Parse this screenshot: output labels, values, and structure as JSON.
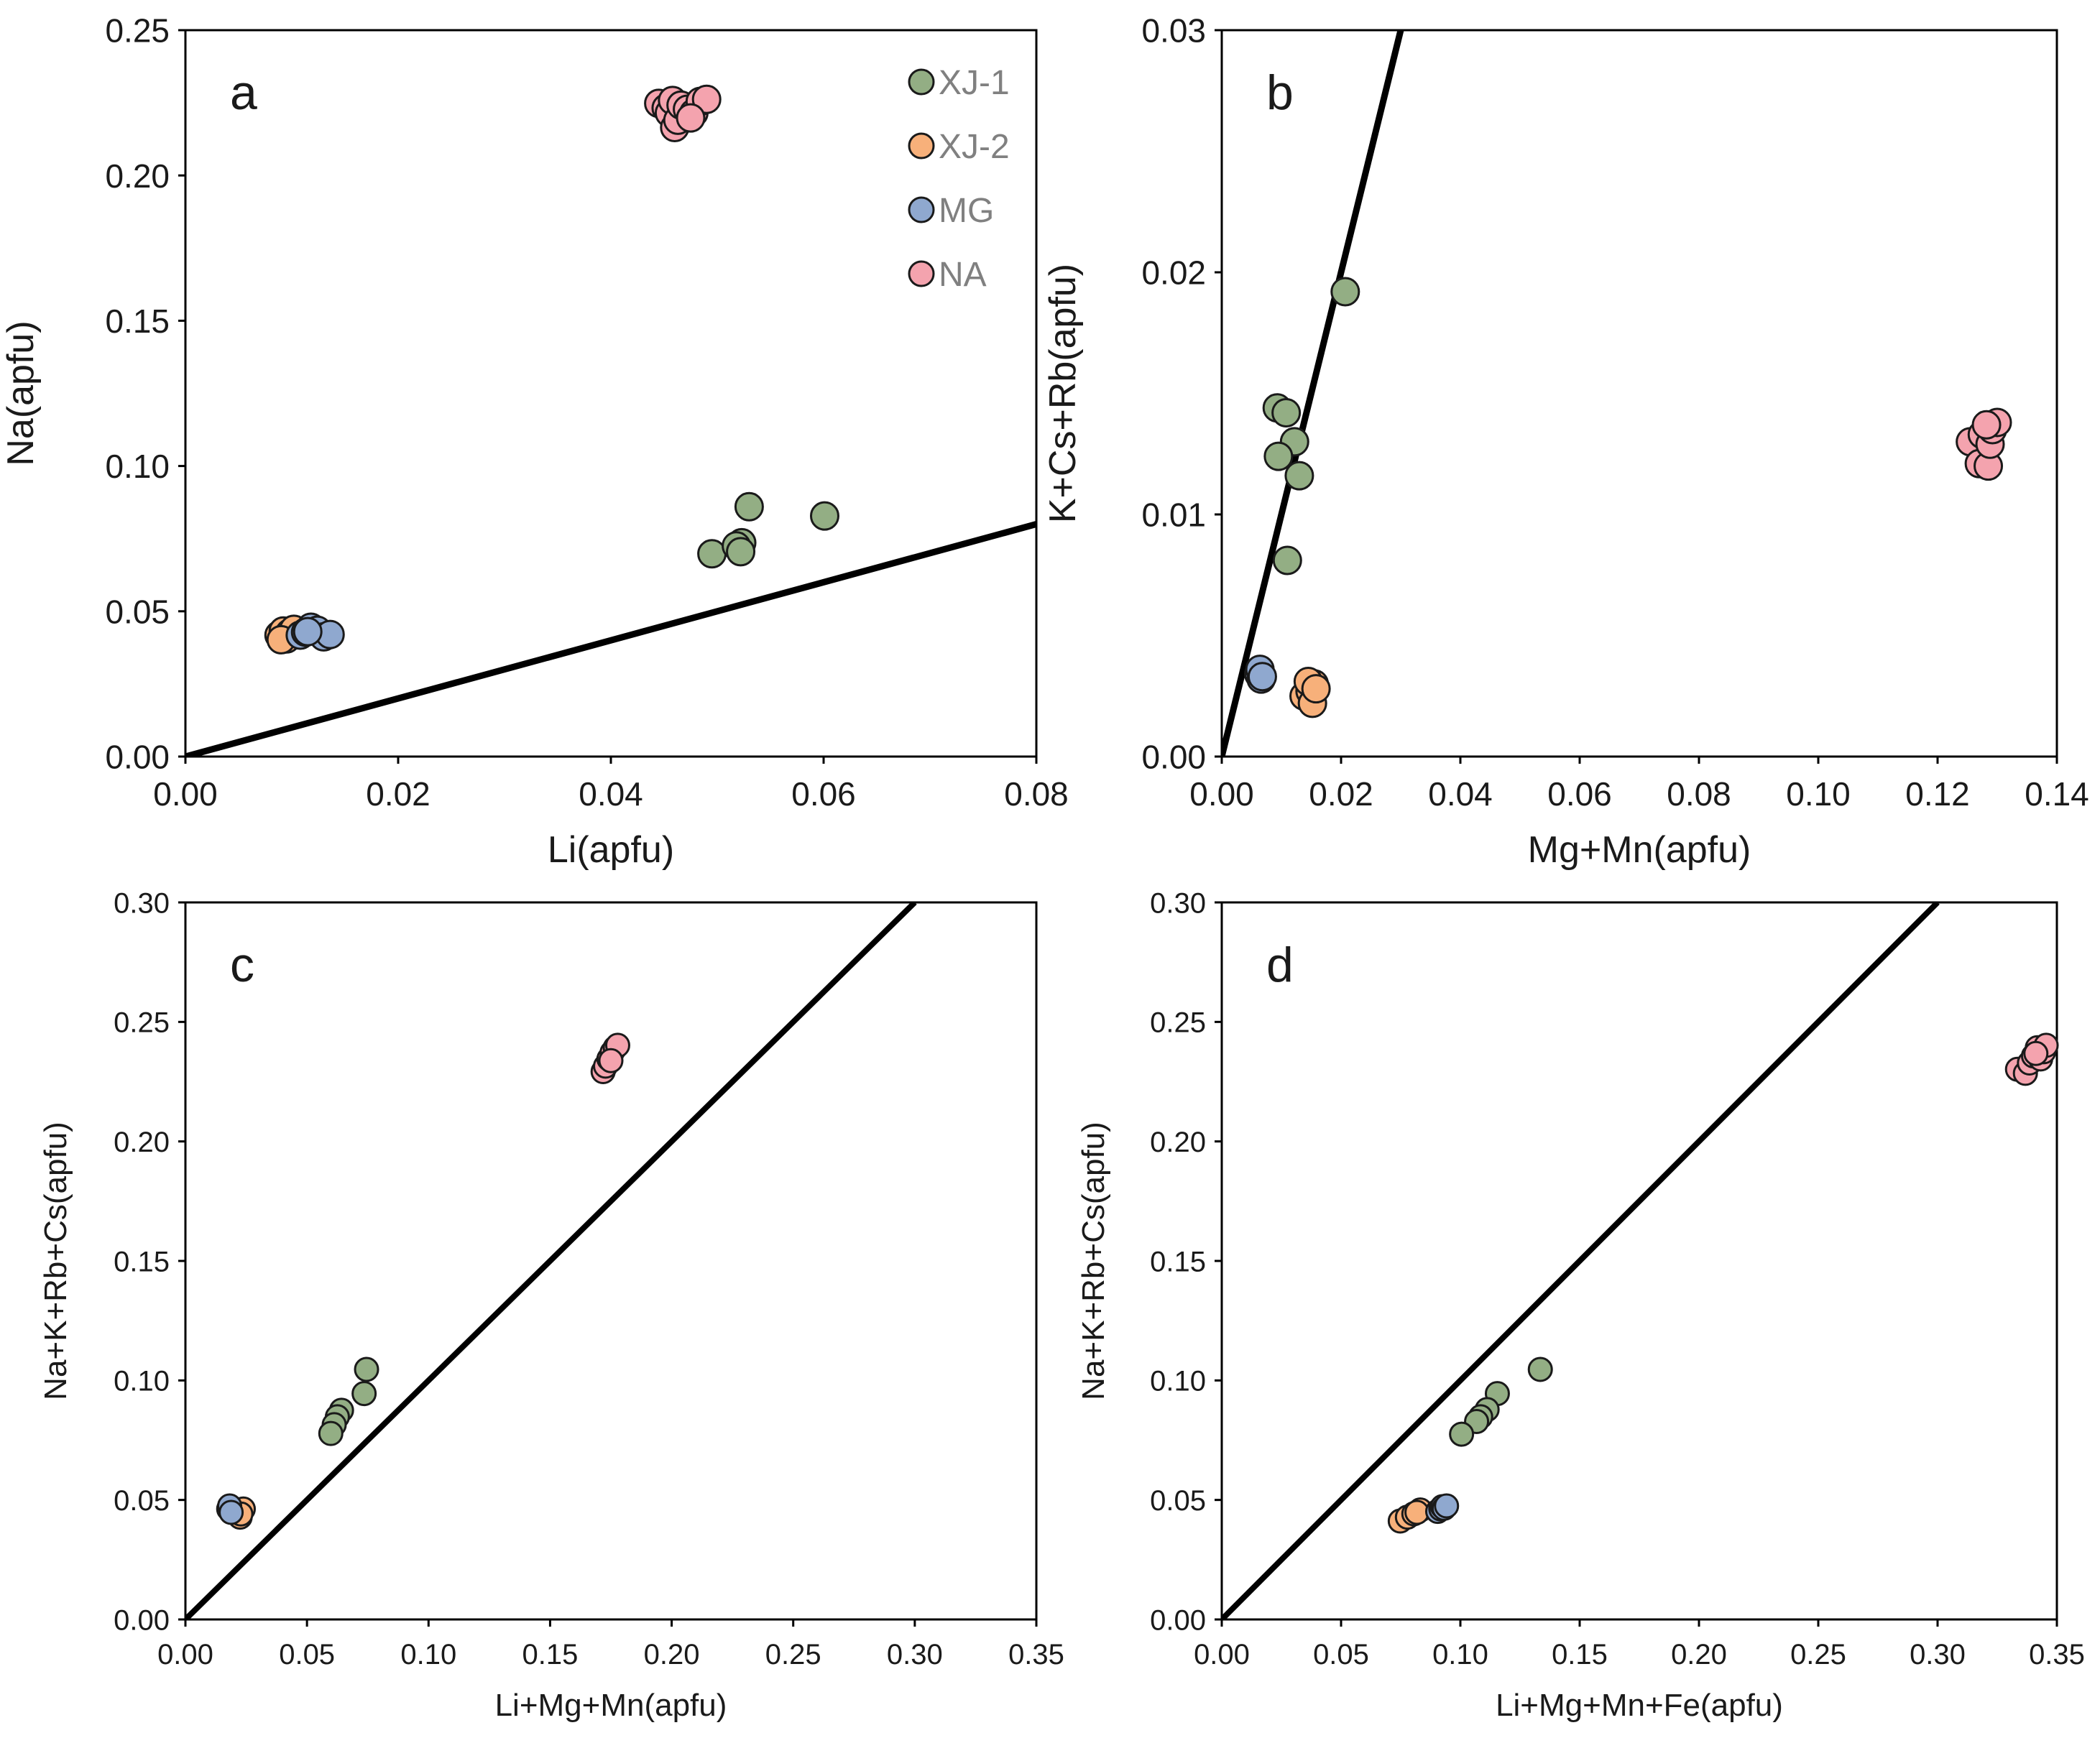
{
  "colors": {
    "XJ-1": "#93ae84",
    "XJ-2": "#f7b07a",
    "MG": "#8fa8cf",
    "NA": "#f4a3ae",
    "stroke": "#1a1a1a",
    "line": "#000000"
  },
  "chart_data": [
    {
      "panel": "a",
      "type": "scatter",
      "xlabel": "Li(apfu)",
      "ylabel": "Na(apfu)",
      "xlim": [
        0,
        0.08
      ],
      "ylim": [
        0,
        0.25
      ],
      "xticks": [
        "0.00",
        "0.02",
        "0.04",
        "0.06",
        "0.08"
      ],
      "yticks": [
        "0.00",
        "0.05",
        "0.10",
        "0.15",
        "0.20",
        "0.25"
      ],
      "ref_line": [
        [
          0,
          0
        ],
        [
          0.08,
          0.08
        ]
      ],
      "legend": {
        "position": "top-right",
        "entries": [
          "XJ-1",
          "XJ-2",
          "MG",
          "NA"
        ]
      },
      "series": [
        {
          "name": "XJ-1",
          "points": [
            [
              0.0495,
              0.0698
            ],
            [
              0.0523,
              0.0736
            ],
            [
              0.0518,
              0.0725
            ],
            [
              0.0522,
              0.0705
            ],
            [
              0.053,
              0.086
            ],
            [
              0.0601,
              0.0828
            ]
          ]
        },
        {
          "name": "XJ-2",
          "points": [
            [
              0.0088,
              0.0418
            ],
            [
              0.0092,
              0.0432
            ],
            [
              0.0095,
              0.0405
            ],
            [
              0.0098,
              0.0425
            ],
            [
              0.0102,
              0.0438
            ],
            [
              0.009,
              0.0402
            ]
          ]
        },
        {
          "name": "MG",
          "points": [
            [
              0.0108,
              0.0418
            ],
            [
              0.0113,
              0.0428
            ],
            [
              0.0118,
              0.0445
            ],
            [
              0.0124,
              0.0435
            ],
            [
              0.013,
              0.0412
            ],
            [
              0.0136,
              0.042
            ],
            [
              0.0115,
              0.043
            ]
          ]
        },
        {
          "name": "NA",
          "points": [
            [
              0.0445,
              0.2248
            ],
            [
              0.0452,
              0.2232
            ],
            [
              0.0455,
              0.2215
            ],
            [
              0.0458,
              0.2258
            ],
            [
              0.046,
              0.2165
            ],
            [
              0.0463,
              0.219
            ],
            [
              0.0466,
              0.2242
            ],
            [
              0.0472,
              0.2228
            ],
            [
              0.0478,
              0.2215
            ],
            [
              0.0484,
              0.2255
            ],
            [
              0.049,
              0.2262
            ],
            [
              0.0475,
              0.2198
            ]
          ]
        }
      ]
    },
    {
      "panel": "b",
      "type": "scatter",
      "xlabel": "Mg+Mn(apfu)",
      "ylabel": "K+Cs+Rb(apfu)",
      "xlim": [
        0,
        0.14
      ],
      "ylim": [
        0,
        0.03
      ],
      "xticks": [
        "0.00",
        "0.02",
        "0.04",
        "0.06",
        "0.08",
        "0.10",
        "0.12",
        "0.14"
      ],
      "yticks": [
        "0.00",
        "0.01",
        "0.02",
        "0.03"
      ],
      "ref_line": [
        [
          0,
          0
        ],
        [
          0.03,
          0.03
        ]
      ],
      "series": [
        {
          "name": "XJ-1",
          "points": [
            [
              0.0207,
              0.0192
            ],
            [
              0.0093,
              0.0144
            ],
            [
              0.0108,
              0.0142
            ],
            [
              0.0122,
              0.013
            ],
            [
              0.0095,
              0.0124
            ],
            [
              0.013,
              0.0116
            ],
            [
              0.011,
              0.0081
            ]
          ]
        },
        {
          "name": "XJ-2",
          "points": [
            [
              0.0138,
              0.0025
            ],
            [
              0.0148,
              0.0027
            ],
            [
              0.0152,
              0.0022
            ],
            [
              0.0155,
              0.003
            ],
            [
              0.0145,
              0.0031
            ],
            [
              0.0158,
              0.0028
            ]
          ]
        },
        {
          "name": "MG",
          "points": [
            [
              0.0062,
              0.0034
            ],
            [
              0.0066,
              0.0032
            ],
            [
              0.0064,
              0.0036
            ],
            [
              0.0068,
              0.0033
            ]
          ]
        },
        {
          "name": "NA",
          "points": [
            [
              0.1255,
              0.013
            ],
            [
              0.127,
              0.0121
            ],
            [
              0.1285,
              0.012
            ],
            [
              0.1275,
              0.0133
            ],
            [
              0.1288,
              0.0129
            ],
            [
              0.1292,
              0.0135
            ],
            [
              0.13,
              0.0138
            ],
            [
              0.1282,
              0.0137
            ]
          ]
        }
      ]
    },
    {
      "panel": "c",
      "type": "scatter",
      "xlabel": "Li+Mg+Mn(apfu)",
      "ylabel": "Na+K+Rb+Cs(apfu)",
      "xlim": [
        0,
        0.35
      ],
      "ylim": [
        0,
        0.3
      ],
      "xticks": [
        "0.00",
        "0.05",
        "0.10",
        "0.15",
        "0.20",
        "0.25",
        "0.30",
        "0.35"
      ],
      "yticks": [
        "0.00",
        "0.05",
        "0.10",
        "0.15",
        "0.20",
        "0.25",
        "0.30"
      ],
      "ref_line": [
        [
          0,
          0
        ],
        [
          0.3,
          0.3
        ]
      ],
      "series": [
        {
          "name": "XJ-1",
          "points": [
            [
              0.0745,
              0.1046
            ],
            [
              0.0735,
              0.0945
            ],
            [
              0.0642,
              0.0875
            ],
            [
              0.0625,
              0.0848
            ],
            [
              0.0612,
              0.0815
            ],
            [
              0.0598,
              0.0778
            ]
          ]
        },
        {
          "name": "XJ-2",
          "points": [
            [
              0.0215,
              0.0455
            ],
            [
              0.0225,
              0.0428
            ],
            [
              0.0238,
              0.0462
            ],
            [
              0.0228,
              0.0441
            ]
          ]
        },
        {
          "name": "MG",
          "points": [
            [
              0.0178,
              0.0462
            ],
            [
              0.0182,
              0.0475
            ],
            [
              0.0188,
              0.0448
            ]
          ]
        },
        {
          "name": "NA",
          "points": [
            [
              0.1718,
              0.2292
            ],
            [
              0.1728,
              0.2315
            ],
            [
              0.1742,
              0.2345
            ],
            [
              0.1755,
              0.2372
            ],
            [
              0.1768,
              0.2392
            ],
            [
              0.1778,
              0.2402
            ],
            [
              0.175,
              0.2338
            ]
          ]
        }
      ]
    },
    {
      "panel": "d",
      "type": "scatter",
      "xlabel": "Li+Mg+Mn+Fe(apfu)",
      "ylabel": "Na+K+Rb+Cs(apfu)",
      "xlim": [
        0,
        0.35
      ],
      "ylim": [
        0,
        0.3
      ],
      "xticks": [
        "0.00",
        "0.05",
        "0.10",
        "0.15",
        "0.20",
        "0.25",
        "0.30",
        "0.35"
      ],
      "yticks": [
        "0.00",
        "0.05",
        "0.10",
        "0.15",
        "0.20",
        "0.25",
        "0.30"
      ],
      "ref_line": [
        [
          0,
          0
        ],
        [
          0.3,
          0.3
        ]
      ],
      "series": [
        {
          "name": "XJ-1",
          "points": [
            [
              0.1335,
              0.1046
            ],
            [
              0.1155,
              0.0945
            ],
            [
              0.1112,
              0.0878
            ],
            [
              0.1085,
              0.0848
            ],
            [
              0.1068,
              0.0828
            ],
            [
              0.1005,
              0.0775
            ]
          ]
        },
        {
          "name": "XJ-2",
          "points": [
            [
              0.0748,
              0.0412
            ],
            [
              0.0778,
              0.0428
            ],
            [
              0.0805,
              0.0442
            ],
            [
              0.0832,
              0.0458
            ],
            [
              0.0818,
              0.0448
            ]
          ]
        },
        {
          "name": "MG",
          "points": [
            [
              0.0905,
              0.0452
            ],
            [
              0.0918,
              0.0462
            ],
            [
              0.0925,
              0.0472
            ],
            [
              0.0932,
              0.0465
            ],
            [
              0.0942,
              0.0475
            ]
          ]
        },
        {
          "name": "NA",
          "points": [
            [
              0.3335,
              0.2302
            ],
            [
              0.3368,
              0.2285
            ],
            [
              0.3385,
              0.2328
            ],
            [
              0.3402,
              0.2358
            ],
            [
              0.3418,
              0.2392
            ],
            [
              0.3432,
              0.2345
            ],
            [
              0.3445,
              0.2375
            ],
            [
              0.3455,
              0.2402
            ],
            [
              0.3412,
              0.2368
            ]
          ]
        }
      ]
    }
  ]
}
